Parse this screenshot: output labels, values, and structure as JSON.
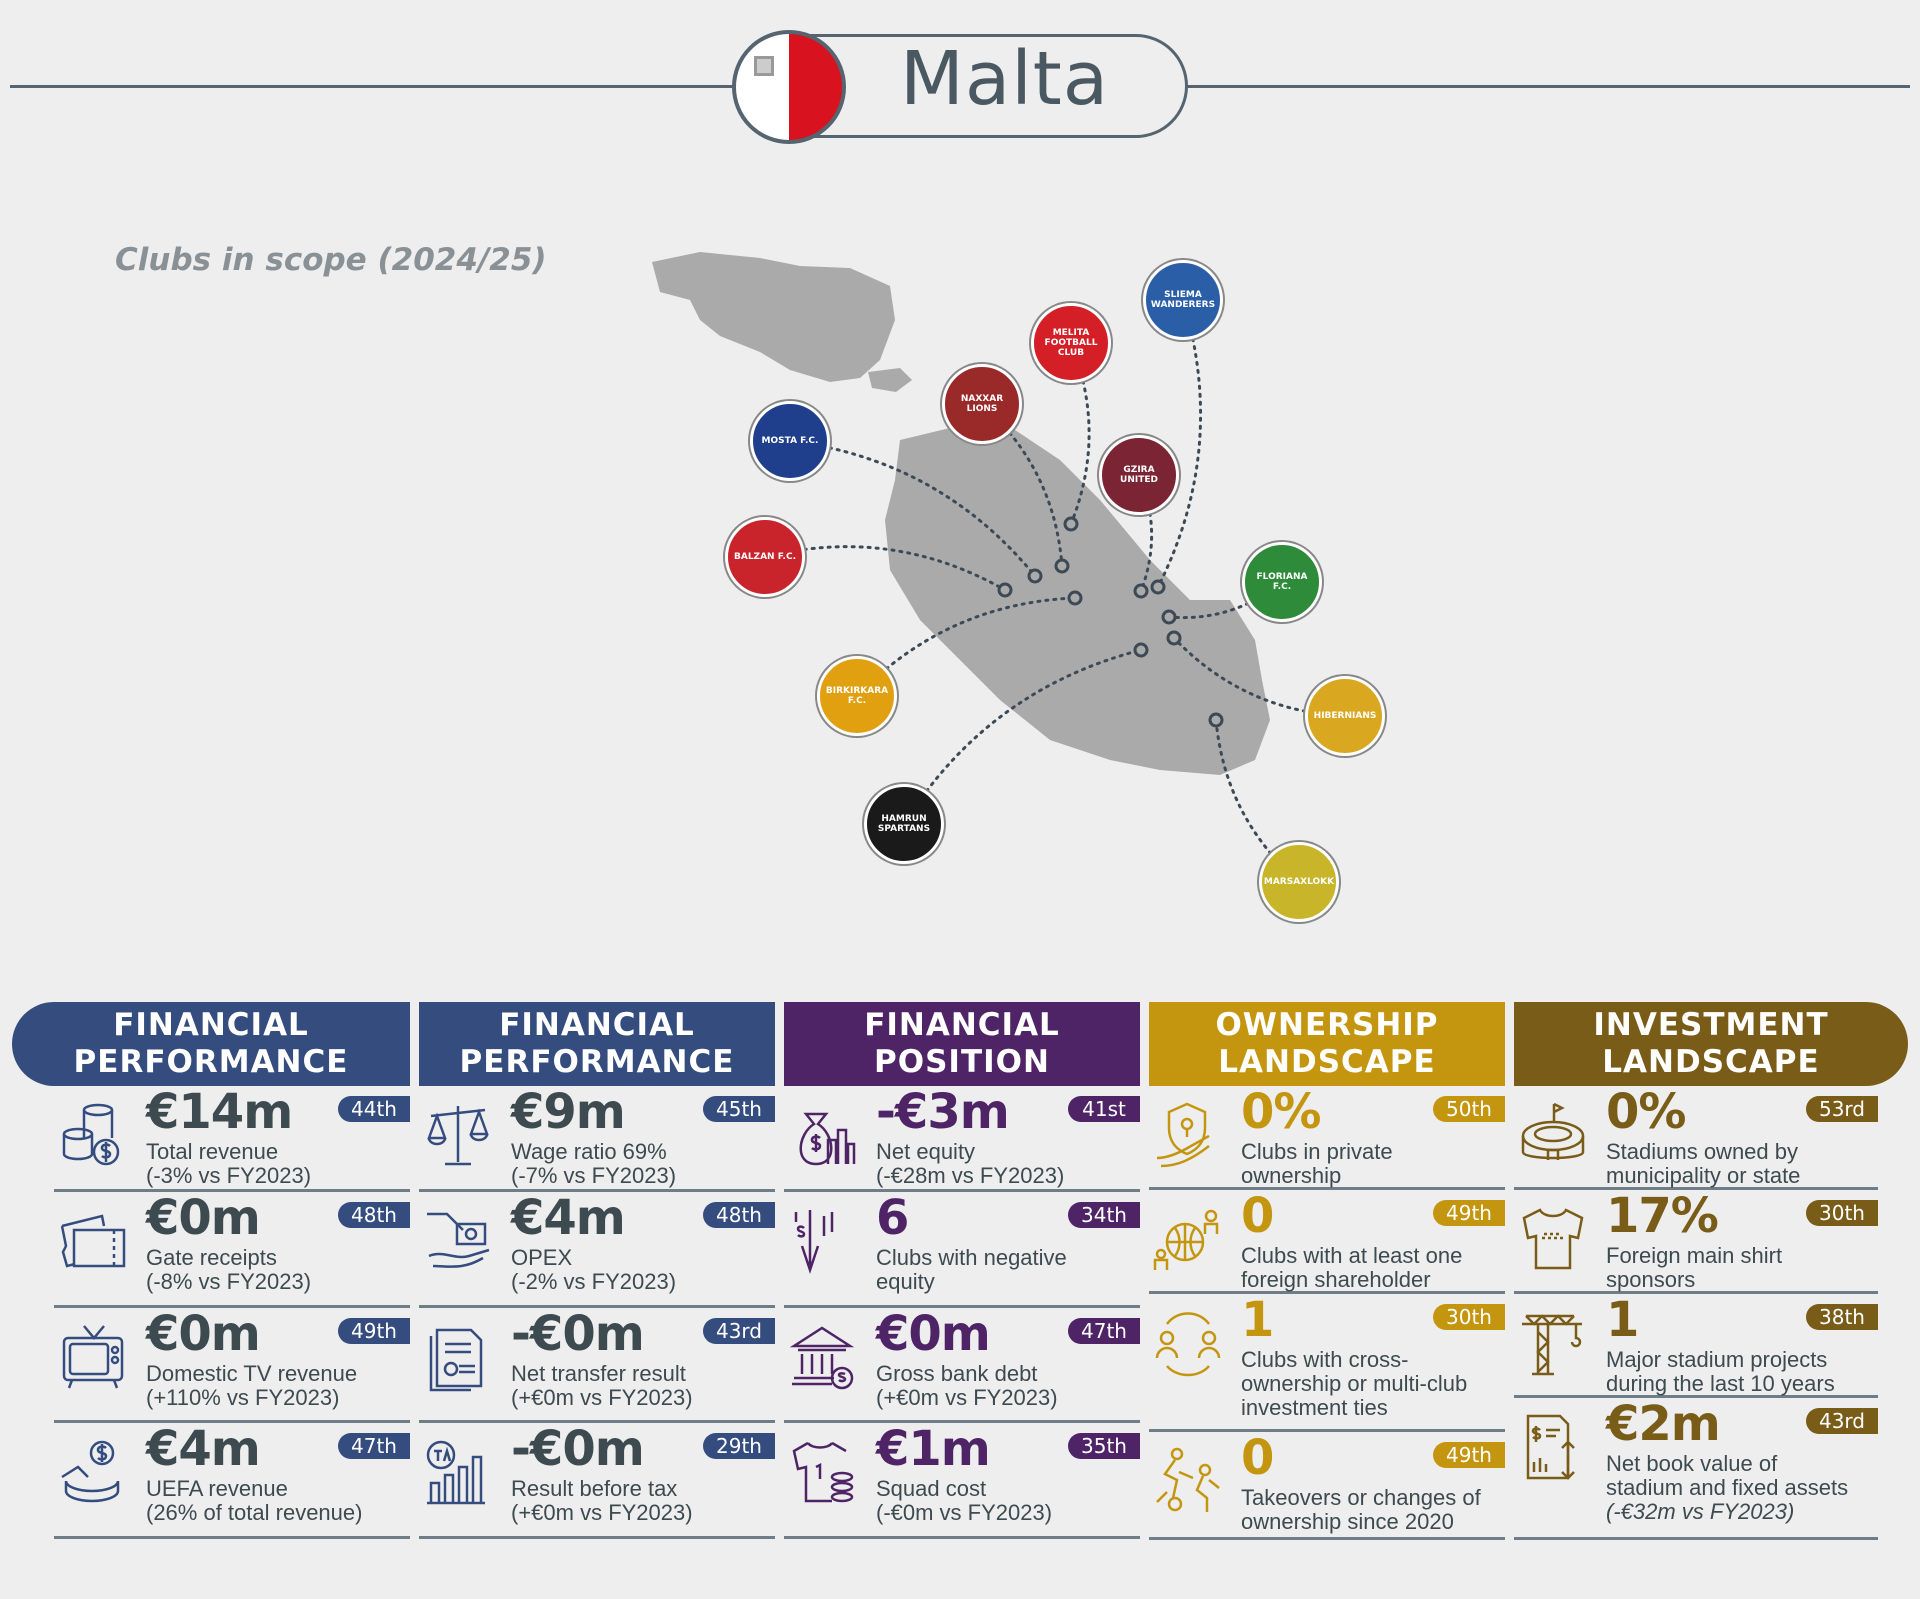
{
  "header": {
    "title": "Malta",
    "flag_icon": "malta-flag-icon",
    "subtitle": "Clubs in scope (2024/25)"
  },
  "clubs": [
    {
      "logo": "MELITA FOOTBALL CLUB",
      "color": "#d51f26"
    },
    {
      "logo": "SLIEMA WANDERERS",
      "color": "#2a5fa8"
    },
    {
      "logo": "NAXXAR LIONS",
      "color": "#9a2a2a"
    },
    {
      "logo": "GZIRA UNITED",
      "color": "#7a2434"
    },
    {
      "logo": "MOSTA F.C.",
      "color": "#1f3f8c"
    },
    {
      "logo": "BALZAN F.C.",
      "color": "#c9242b"
    },
    {
      "logo": "FLORIANA F.C.",
      "color": "#2e8b3a"
    },
    {
      "logo": "BIRKIRKARA F.C.",
      "color": "#e0a010"
    },
    {
      "logo": "HAMRUN SPARTANS",
      "color": "#1a1a1a"
    },
    {
      "logo": "HIBERNIANS",
      "color": "#d9a820"
    },
    {
      "logo": "MARSAXLOKK",
      "color": "#c8b52a"
    }
  ],
  "colors": {
    "perf": "#344c7e",
    "pos": "#4e2466",
    "own": "#c4960f",
    "inv": "#7a5c19",
    "text": "#3d4a4f"
  },
  "columns": [
    {
      "title1": "FINANCIAL",
      "title2": "PERFORMANCE",
      "color": "#344c7e",
      "items": [
        {
          "icon": "coins-dollar-icon",
          "value": "€14m",
          "rank": "44th",
          "label": "Total revenue",
          "sub": "(-3% vs FY2023)"
        },
        {
          "icon": "tickets-icon",
          "value": "€0m",
          "rank": "48th",
          "label": "Gate receipts",
          "sub": "(-8% vs FY2023)"
        },
        {
          "icon": "tv-icon",
          "value": "€0m",
          "rank": "49th",
          "label": "Domestic TV revenue",
          "sub": "(+110% vs FY2023)"
        },
        {
          "icon": "uefa-revenue-icon",
          "value": "€4m",
          "rank": "47th",
          "label": "UEFA revenue",
          "sub": "(26% of total revenue)"
        }
      ]
    },
    {
      "title1": "FINANCIAL",
      "title2": "PERFORMANCE",
      "color": "#344c7e",
      "items": [
        {
          "icon": "scales-icon",
          "value": "€9m",
          "rank": "45th",
          "label": "Wage ratio 69%",
          "sub": "(-7% vs FY2023)"
        },
        {
          "icon": "hand-money-icon",
          "value": "€4m",
          "rank": "48th",
          "label": "OPEX",
          "sub": "(-2% vs FY2023)"
        },
        {
          "icon": "document-icon",
          "value": "-€0m",
          "rank": "43rd",
          "label": "Net transfer result",
          "sub": "(+€0m vs FY2023)"
        },
        {
          "icon": "tax-chart-icon",
          "value": "-€0m",
          "rank": "29th",
          "label": "Result before tax",
          "sub": "(+€0m vs FY2023)"
        }
      ]
    },
    {
      "title1": "FINANCIAL",
      "title2": "POSITION",
      "color": "#4e2466",
      "items": [
        {
          "icon": "money-bag-chart-icon",
          "value": "-€3m",
          "rank": "41st",
          "label": "Net equity",
          "sub": "(-€28m vs FY2023)"
        },
        {
          "icon": "dollar-down-arrow-icon",
          "value": "6",
          "rank": "34th",
          "label": "Clubs with negative",
          "sub": "equity"
        },
        {
          "icon": "bank-icon",
          "value": "€0m",
          "rank": "47th",
          "label": "Gross bank debt",
          "sub": "(+€0m vs FY2023)"
        },
        {
          "icon": "shirt-coins-icon",
          "value": "€1m",
          "rank": "35th",
          "label": "Squad cost",
          "sub": "(-€0m vs FY2023)"
        }
      ]
    },
    {
      "title1": "OWNERSHIP",
      "title2": "LANDSCAPE",
      "color": "#c4960f",
      "items": [
        {
          "icon": "shield-hand-icon",
          "value": "0%",
          "rank": "50th",
          "label": "Clubs in private",
          "sub": "ownership"
        },
        {
          "icon": "globe-people-icon",
          "value": "0",
          "rank": "49th",
          "label": "Clubs with at least one",
          "sub": "foreign shareholder"
        },
        {
          "icon": "people-cycle-icon",
          "value": "1",
          "rank": "30th",
          "label": "Clubs with cross-",
          "sub": "ownership or multi-club",
          "sub2": "investment ties"
        },
        {
          "icon": "players-icon",
          "value": "0",
          "rank": "49th",
          "label": "Takeovers or changes of",
          "sub": "ownership since 2020"
        }
      ]
    },
    {
      "title1": "INVESTMENT",
      "title2": "LANDSCAPE",
      "color": "#7a5c19",
      "items": [
        {
          "icon": "stadium-icon",
          "value": "0%",
          "rank": "53rd",
          "label": "Stadiums owned by",
          "sub": "municipality or state"
        },
        {
          "icon": "shirt-icon",
          "value": "17%",
          "rank": "30th",
          "label": "Foreign main shirt",
          "sub": "sponsors"
        },
        {
          "icon": "crane-icon",
          "value": "1",
          "rank": "38th",
          "label": "Major stadium projects",
          "sub": "during the last 10 years"
        },
        {
          "icon": "asset-document-icon",
          "value": "€2m",
          "rank": "43rd",
          "label": "Net book value of",
          "sub": "stadium and fixed assets",
          "sub2": "(-€32m vs FY2023)"
        }
      ]
    }
  ]
}
